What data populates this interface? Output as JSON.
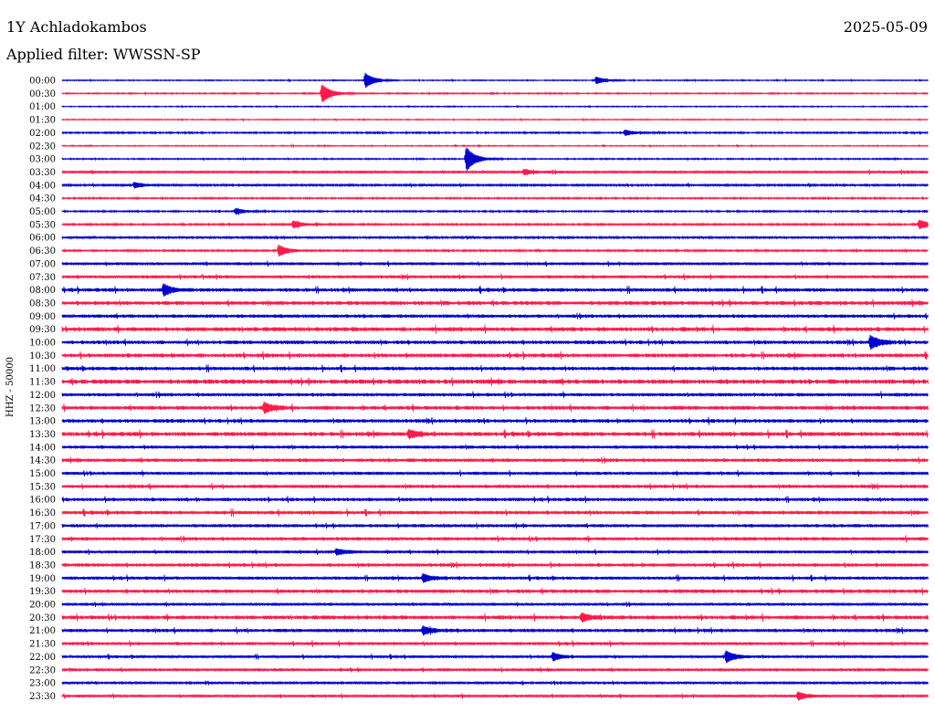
{
  "header": {
    "station": "1Y Achladokambos",
    "date": "2025-05-09",
    "filter": "Applied filter: WWSSN-SP"
  },
  "chart_data": {
    "type": "line",
    "ylabel": "HHZ - 50000",
    "colors": [
      "#0000cc",
      "#ff1a4a"
    ],
    "row_times": [
      "00:00",
      "00:30",
      "01:00",
      "01:30",
      "02:00",
      "02:30",
      "03:00",
      "03:30",
      "04:00",
      "04:30",
      "05:00",
      "05:30",
      "06:00",
      "06:30",
      "07:00",
      "07:30",
      "08:00",
      "08:30",
      "09:00",
      "09:30",
      "10:00",
      "10:30",
      "11:00",
      "11:30",
      "12:00",
      "12:30",
      "13:00",
      "13:30",
      "14:00",
      "14:30",
      "15:00",
      "15:30",
      "16:00",
      "16:30",
      "17:00",
      "17:30",
      "18:00",
      "18:30",
      "19:00",
      "19:30",
      "20:00",
      "20:30",
      "21:00",
      "21:30",
      "22:00",
      "22:30",
      "23:00",
      "23:30"
    ],
    "row_noise": [
      0.4,
      0.5,
      0.4,
      0.4,
      0.6,
      0.4,
      0.5,
      1.0,
      0.8,
      0.6,
      0.6,
      0.7,
      0.8,
      0.7,
      1.1,
      1.2,
      1.4,
      1.5,
      1.3,
      1.6,
      1.4,
      1.5,
      1.4,
      1.7,
      1.3,
      1.5,
      1.4,
      1.6,
      1.2,
      1.3,
      1.2,
      1.3,
      1.3,
      1.4,
      1.2,
      1.3,
      1.1,
      1.3,
      1.2,
      1.4,
      1.1,
      1.5,
      1.3,
      1.2,
      1.0,
      1.1,
      0.9,
      1.0
    ],
    "events": [
      {
        "row": "00:00",
        "minute": 10.5,
        "amplitude": 8
      },
      {
        "row": "00:00",
        "minute": 18.5,
        "amplitude": 4
      },
      {
        "row": "00:30",
        "minute": 9.0,
        "amplitude": 10
      },
      {
        "row": "02:00",
        "minute": 19.5,
        "amplitude": 3
      },
      {
        "row": "03:00",
        "minute": 14.0,
        "amplitude": 13
      },
      {
        "row": "03:30",
        "minute": 16.0,
        "amplitude": 3
      },
      {
        "row": "04:00",
        "minute": 2.5,
        "amplitude": 3
      },
      {
        "row": "05:00",
        "minute": 6.0,
        "amplitude": 3
      },
      {
        "row": "05:30",
        "minute": 8.0,
        "amplitude": 4
      },
      {
        "row": "05:30",
        "minute": 29.7,
        "amplitude": 5
      },
      {
        "row": "06:30",
        "minute": 7.5,
        "amplitude": 6
      },
      {
        "row": "08:00",
        "minute": 3.5,
        "amplitude": 6
      },
      {
        "row": "10:00",
        "minute": 28.0,
        "amplitude": 7
      },
      {
        "row": "12:30",
        "minute": 7.0,
        "amplitude": 5
      },
      {
        "row": "13:30",
        "minute": 12.0,
        "amplitude": 4
      },
      {
        "row": "18:00",
        "minute": 9.5,
        "amplitude": 3
      },
      {
        "row": "19:00",
        "minute": 12.5,
        "amplitude": 4
      },
      {
        "row": "20:30",
        "minute": 18.0,
        "amplitude": 4
      },
      {
        "row": "21:00",
        "minute": 12.5,
        "amplitude": 4
      },
      {
        "row": "22:00",
        "minute": 17.0,
        "amplitude": 4
      },
      {
        "row": "22:00",
        "minute": 23.0,
        "amplitude": 6
      },
      {
        "row": "23:30",
        "minute": 25.5,
        "amplitude": 4
      }
    ]
  }
}
